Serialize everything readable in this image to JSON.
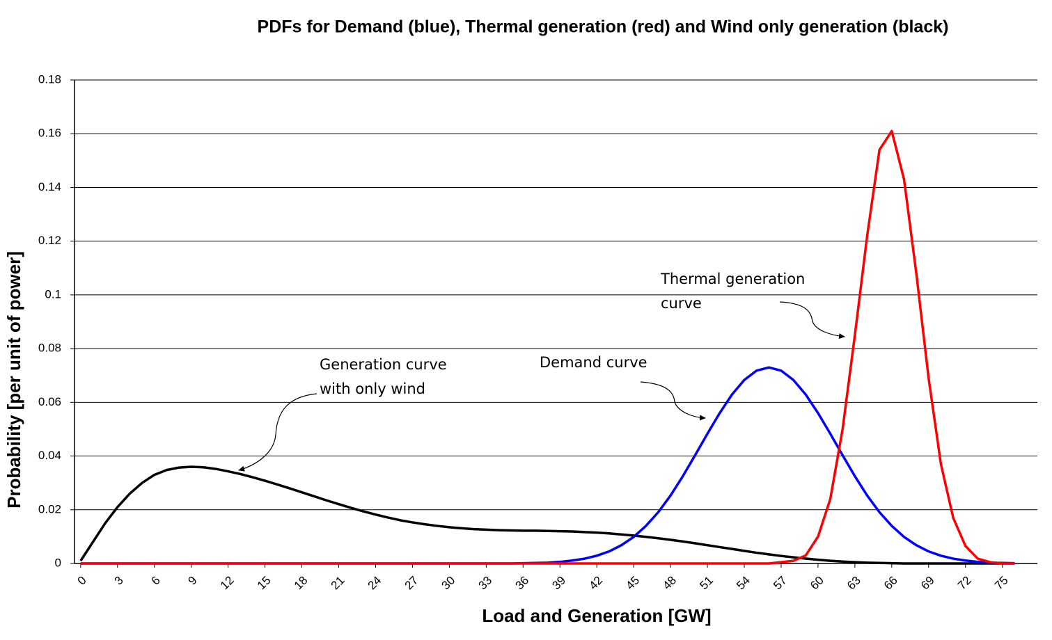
{
  "chart_data": {
    "type": "line",
    "title": "PDFs for Demand (blue), Thermal generation (red) and Wind only generation (black)",
    "x_label": "Load and Generation [GW]",
    "y_label": "Probability [per unit of power]",
    "x": [
      0,
      1,
      2,
      3,
      4,
      5,
      6,
      7,
      8,
      9,
      10,
      11,
      12,
      13,
      14,
      15,
      16,
      17,
      18,
      19,
      20,
      21,
      22,
      23,
      24,
      25,
      26,
      27,
      28,
      29,
      30,
      31,
      32,
      33,
      34,
      35,
      36,
      37,
      38,
      39,
      40,
      41,
      42,
      43,
      44,
      45,
      46,
      47,
      48,
      49,
      50,
      51,
      52,
      53,
      54,
      55,
      56,
      57,
      58,
      59,
      60,
      61,
      62,
      63,
      64,
      65,
      66,
      67,
      68,
      69,
      70,
      71,
      72,
      73,
      74,
      75,
      76
    ],
    "series": [
      {
        "name": "Wind only generation",
        "color": "#000000",
        "values": [
          0.001,
          0.008,
          0.015,
          0.021,
          0.026,
          0.03,
          0.033,
          0.0348,
          0.0357,
          0.036,
          0.0358,
          0.0352,
          0.0343,
          0.0333,
          0.0321,
          0.0308,
          0.0294,
          0.028,
          0.0265,
          0.025,
          0.0235,
          0.0221,
          0.0207,
          0.0194,
          0.0182,
          0.0171,
          0.0161,
          0.0153,
          0.0146,
          0.014,
          0.0135,
          0.0131,
          0.0128,
          0.0126,
          0.0124,
          0.0123,
          0.0122,
          0.0122,
          0.0121,
          0.012,
          0.0119,
          0.0117,
          0.0115,
          0.0112,
          0.0108,
          0.0104,
          0.0099,
          0.0094,
          0.0088,
          0.0082,
          0.0075,
          0.0068,
          0.0061,
          0.0054,
          0.0047,
          0.004,
          0.0034,
          0.0028,
          0.0023,
          0.0018,
          0.0014,
          0.001,
          0.0007,
          0.0005,
          0.0003,
          0.0002,
          0.0001,
          0,
          0,
          0,
          0,
          0,
          0,
          0,
          0,
          0,
          0
        ]
      },
      {
        "name": "Demand",
        "color": "#0000ff",
        "values": [
          0,
          0,
          0,
          0,
          0,
          0,
          0,
          0,
          0,
          0,
          0,
          0,
          0,
          0,
          0,
          0,
          0,
          0,
          0,
          0,
          0,
          0,
          0,
          0,
          0,
          0,
          0,
          0,
          0,
          0,
          0,
          0,
          0,
          0,
          0,
          0,
          0.0001,
          0.0002,
          0.0003,
          0.0006,
          0.0011,
          0.0018,
          0.0029,
          0.0045,
          0.0068,
          0.0099,
          0.014,
          0.0191,
          0.0253,
          0.0325,
          0.0403,
          0.0483,
          0.056,
          0.0629,
          0.0683,
          0.0718,
          0.073,
          0.0718,
          0.0683,
          0.0629,
          0.056,
          0.0483,
          0.0403,
          0.0325,
          0.0253,
          0.0191,
          0.014,
          0.0099,
          0.0068,
          0.0045,
          0.0029,
          0.0018,
          0.0011,
          0.0006,
          0.0003,
          0.0002,
          0.0001
        ]
      },
      {
        "name": "Thermal generation",
        "color": "#ff0000",
        "values": [
          0,
          0,
          0,
          0,
          0,
          0,
          0,
          0,
          0,
          0,
          0,
          0,
          0,
          0,
          0,
          0,
          0,
          0,
          0,
          0,
          0,
          0,
          0,
          0,
          0,
          0,
          0,
          0,
          0,
          0,
          0,
          0,
          0,
          0,
          0,
          0,
          0,
          0,
          0,
          0,
          0,
          0,
          0,
          0,
          0,
          0,
          0,
          0,
          0,
          0,
          0,
          0,
          0,
          0,
          0,
          0,
          0,
          0.0005,
          0.001,
          0.003,
          0.01,
          0.024,
          0.05,
          0.085,
          0.122,
          0.154,
          0.161,
          0.143,
          0.108,
          0.069,
          0.037,
          0.017,
          0.0065,
          0.0018,
          0.0005,
          0,
          0
        ]
      }
    ],
    "xlim": [
      -0.5,
      77.85
    ],
    "xticks": [
      0,
      3,
      6,
      9,
      12,
      15,
      18,
      21,
      24,
      27,
      30,
      33,
      36,
      39,
      42,
      45,
      48,
      51,
      54,
      57,
      60,
      63,
      66,
      69,
      72,
      75
    ],
    "ylim": [
      0,
      0.18
    ],
    "yticks": [
      0,
      0.02,
      0.04,
      0.06,
      0.08,
      0.1,
      0.12,
      0.14,
      0.16,
      0.18
    ],
    "grid": true,
    "annotations": [
      {
        "lines": [
          "Thermal generation",
          "curve"
        ]
      },
      {
        "lines": [
          "Demand curve"
        ]
      },
      {
        "lines": [
          "Generation curve",
          "with only wind"
        ]
      }
    ]
  }
}
